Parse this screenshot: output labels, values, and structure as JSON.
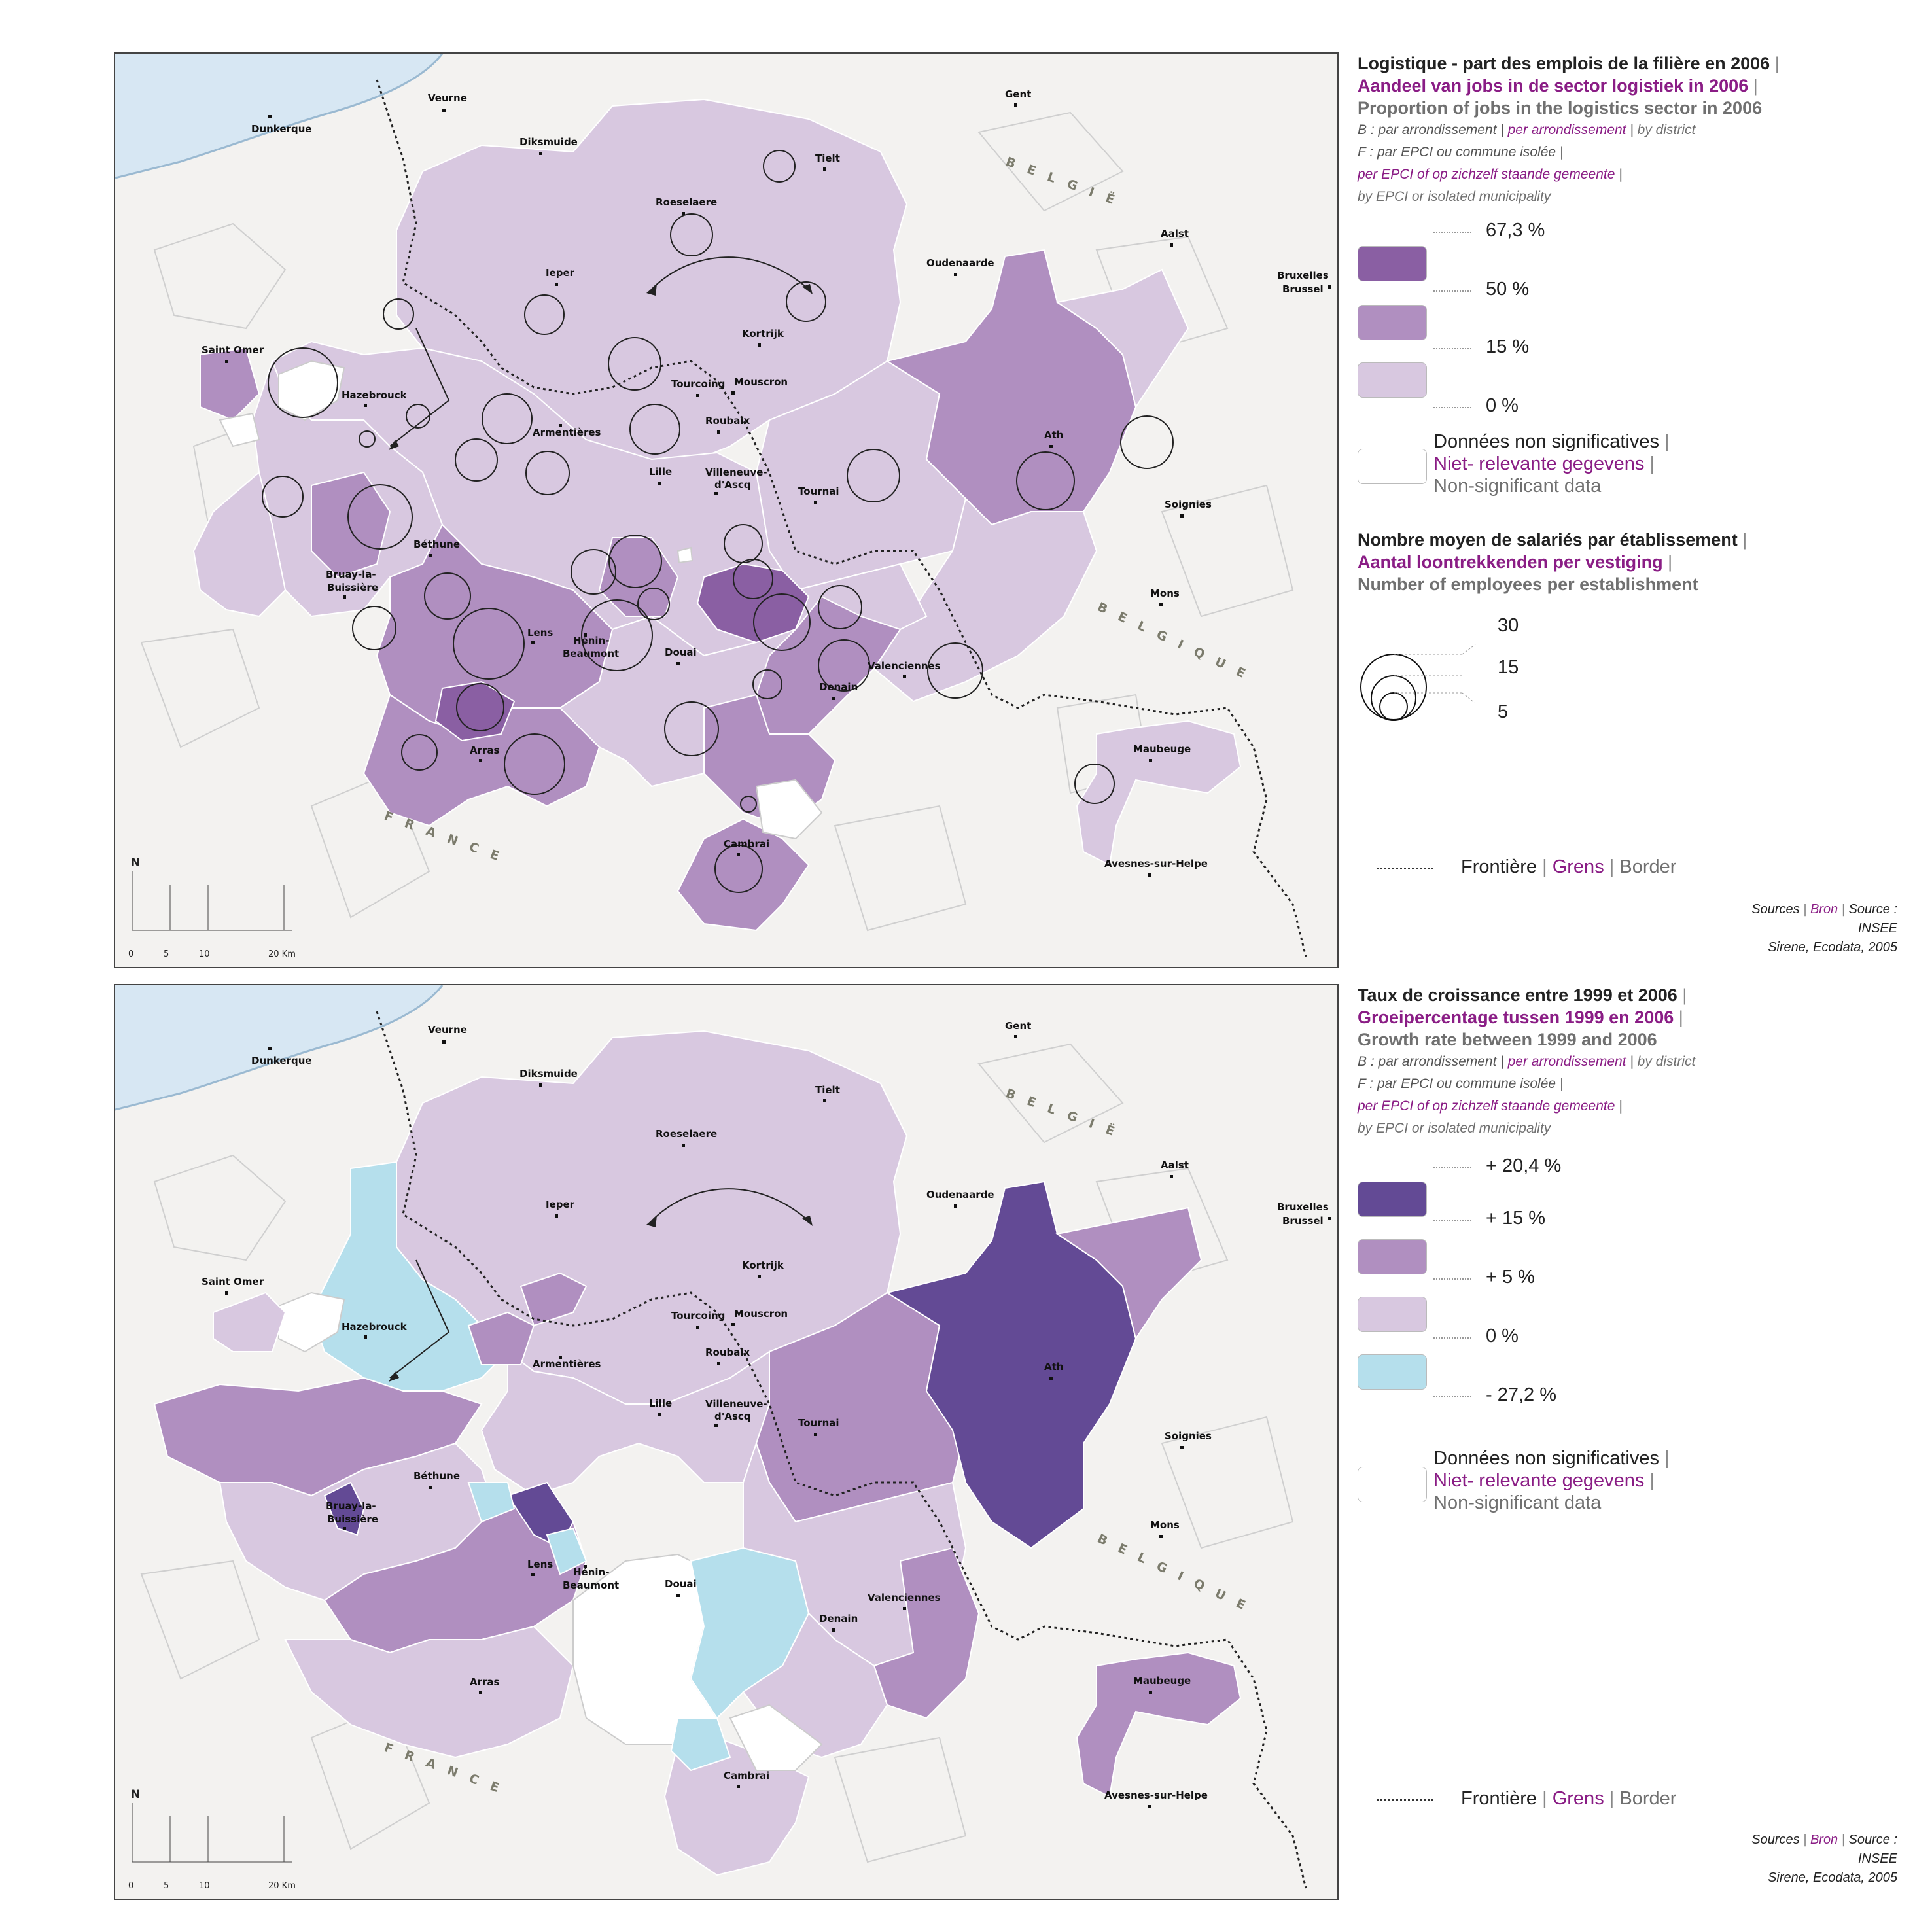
{
  "cities": {
    "dunkerque": "Dunkerque",
    "veurne": "Veurne",
    "diksmuide": "Diksmuide",
    "gent": "Gent",
    "tielt": "Tielt",
    "roeselaere": "Roeselaere",
    "aalst": "Aalst",
    "oudenaarde": "Oudenaarde",
    "ieper": "Ieper",
    "bruxelles": "Bruxelles",
    "brussel": "Brussel",
    "saint_omer": "Saint Omer",
    "kortrijk": "Kortrijk",
    "tourcoing": "Tourcoing",
    "mouscron": "Mouscron",
    "hazebrouck": "Hazebrouck",
    "roubaix": "Roubaix",
    "armentieres": "Armentières",
    "ath": "Ath",
    "lille": "Lille",
    "villeneuve1": "Villeneuve-",
    "villeneuve2": "d'Ascq",
    "tournai": "Tournai",
    "soignies": "Soignies",
    "bethune": "Béthune",
    "mons": "Mons",
    "bruay1": "Bruay-la-",
    "bruay2": "Buissière",
    "lens": "Lens",
    "henin1": "Hénin-",
    "henin2": "Beaumont",
    "douai": "Douai",
    "valenciennes": "Valenciennes",
    "denain": "Denain",
    "arras": "Arras",
    "maubeuge": "Maubeuge",
    "cambrai": "Cambrai",
    "avesnes": "Avesnes-sur-Helpe"
  },
  "countries": {
    "belgium": "BELGIË",
    "belgique": "BELGIQUE",
    "france": "FRANCE"
  },
  "scale": {
    "north": "N",
    "t0": "0",
    "t5": "5",
    "t10": "10",
    "t20": "20 Km"
  },
  "colors": {
    "sea": "#d7e7f3",
    "background": "#f3f2f0",
    "border_line": "#222222",
    "map1": {
      "c0": "#d8c8e0",
      "c15": "#b08fc0",
      "c50": "#8a5fa3"
    },
    "map2": {
      "neg": "#b5dfec",
      "c0": "#d8c8e0",
      "c5": "#b08fc0",
      "c15": "#634a95"
    }
  },
  "map1": {
    "legend": {
      "title_fr": "Logistique - part des emplois de la filière  en 2006",
      "title_nl": "Aandeel van jobs in de sector logistiek in 2006",
      "title_en": "Proportion of jobs in the logistics sector in 2006",
      "sep": "|",
      "b_fr": "B : par arrondissement",
      "b_nl": "per arrondissement",
      "b_en": "by district",
      "f_fr": "F : par EPCI ou commune isolée",
      "f_nl": "per EPCI of op zichzelf staande gemeente",
      "f_en": "by EPCI or isolated municipality",
      "breaks": [
        "67,3 %",
        "50 %",
        "15 %",
        "0 %"
      ],
      "nsd_fr": "Données non significatives",
      "nsd_nl": "Niet- relevante gegevens",
      "nsd_en": "Non-significant data",
      "circles_fr": "Nombre moyen de salariés par établissement",
      "circles_nl": "Aantal loontrekkenden per vestiging",
      "circles_en": "Number of employees per establishment",
      "circle_values": [
        "30",
        "15",
        "5"
      ],
      "border_fr": "Frontière",
      "border_nl": "Grens",
      "border_en": "Border",
      "src1_fr": "Sources",
      "src1_nl": "Bron",
      "src1_en": "Source :",
      "src2": "INSEE",
      "src3": "Sirene, Ecodata, 2005"
    }
  },
  "map2": {
    "legend": {
      "title_fr": "Taux de croissance entre 1999 et 2006",
      "title_nl": "Groeipercentage tussen 1999 en 2006",
      "title_en": "Growth rate between 1999 and 2006",
      "sep": "|",
      "b_fr": "B : par arrondissement",
      "b_nl": "per arrondissement",
      "b_en": "by district",
      "f_fr": "F : par EPCI ou commune isolée",
      "f_nl": "per EPCI of op zichzelf staande gemeente",
      "f_en": "by EPCI or isolated municipality",
      "breaks": [
        "+ 20,4 %",
        "+ 15 %",
        "+ 5 %",
        "0 %",
        "- 27,2 %"
      ],
      "nsd_fr": "Données non significatives",
      "nsd_nl": "Niet- relevante gegevens",
      "nsd_en": "Non-significant data",
      "border_fr": "Frontière",
      "border_nl": "Grens",
      "border_en": "Border",
      "src1_fr": "Sources",
      "src1_nl": "Bron",
      "src1_en": "Source :",
      "src2": "INSEE",
      "src3": "Sirene, Ecodata, 2005"
    }
  }
}
